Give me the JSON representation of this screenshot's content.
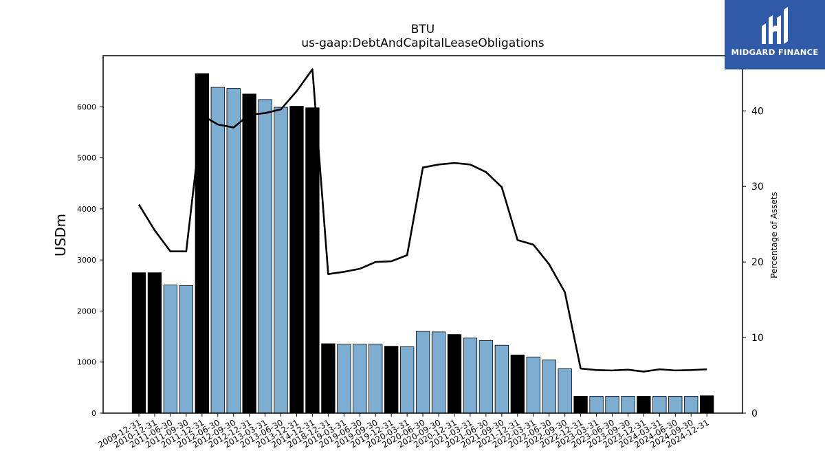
{
  "chart_data": {
    "type": "bar",
    "title": "BTU",
    "subtitle": "us-gaap:DebtAndCapitalLeaseObligations",
    "ylabel": "USDm",
    "y2label": "Percentage of Assets",
    "ylim": [
      0,
      7000
    ],
    "y2lim": [
      0,
      47.3
    ],
    "yticks": [
      0,
      1000,
      2000,
      3000,
      4000,
      5000,
      6000
    ],
    "y2ticks": [
      0,
      10,
      20,
      30,
      40
    ],
    "categories": [
      "2009-12-31",
      "2010-12-31",
      "2011-06-30",
      "2011-09-30",
      "2011-12-31",
      "2012-06-30",
      "2012-09-30",
      "2012-12-31",
      "2013-03-31",
      "2013-06-30",
      "2013-12-31",
      "2014-12-31",
      "2018-12-31",
      "2019-03-31",
      "2019-06-30",
      "2019-09-30",
      "2019-12-31",
      "2020-03-31",
      "2020-06-30",
      "2020-09-30",
      "2020-12-31",
      "2021-03-31",
      "2021-06-30",
      "2021-09-30",
      "2021-12-31",
      "2022-03-31",
      "2022-06-30",
      "2022-09-30",
      "2022-12-31",
      "2023-03-31",
      "2023-06-30",
      "2023-09-30",
      "2023-12-31",
      "2024-03-31",
      "2024-06-30",
      "2024-09-30",
      "2024-12-31"
    ],
    "series": [
      {
        "type": "bar",
        "values": [
          2750,
          2750,
          2510,
          2500,
          6650,
          6380,
          6360,
          6250,
          6140,
          5990,
          6010,
          5980,
          1360,
          1350,
          1350,
          1350,
          1310,
          1300,
          1600,
          1590,
          1540,
          1470,
          1420,
          1330,
          1140,
          1100,
          1040,
          870,
          330,
          330,
          330,
          330,
          330,
          330,
          330,
          330,
          340
        ],
        "year_end_highlight": [
          true,
          true,
          false,
          false,
          true,
          false,
          false,
          true,
          false,
          false,
          true,
          true,
          true,
          false,
          false,
          false,
          true,
          false,
          false,
          false,
          true,
          false,
          false,
          false,
          true,
          false,
          false,
          false,
          true,
          false,
          false,
          false,
          true,
          false,
          false,
          false,
          true
        ]
      },
      {
        "type": "line",
        "axis": "right",
        "values": [
          27.6,
          24.2,
          21.4,
          21.4,
          39.4,
          38.2,
          37.8,
          39.5,
          39.7,
          40.2,
          42.6,
          45.5,
          18.4,
          18.7,
          19.1,
          20.0,
          20.1,
          20.9,
          32.5,
          32.9,
          33.1,
          32.9,
          31.9,
          29.9,
          22.9,
          22.3,
          19.7,
          16.0,
          5.9,
          5.7,
          5.65,
          5.75,
          5.5,
          5.8,
          5.65,
          5.7,
          5.8
        ]
      }
    ],
    "colors": {
      "highlight_bar": "#000000",
      "bar": "#7eadd2",
      "line": "#000000"
    }
  },
  "logo": {
    "text": "MIDGARD FINANCE",
    "background": "#2f5aa8"
  }
}
